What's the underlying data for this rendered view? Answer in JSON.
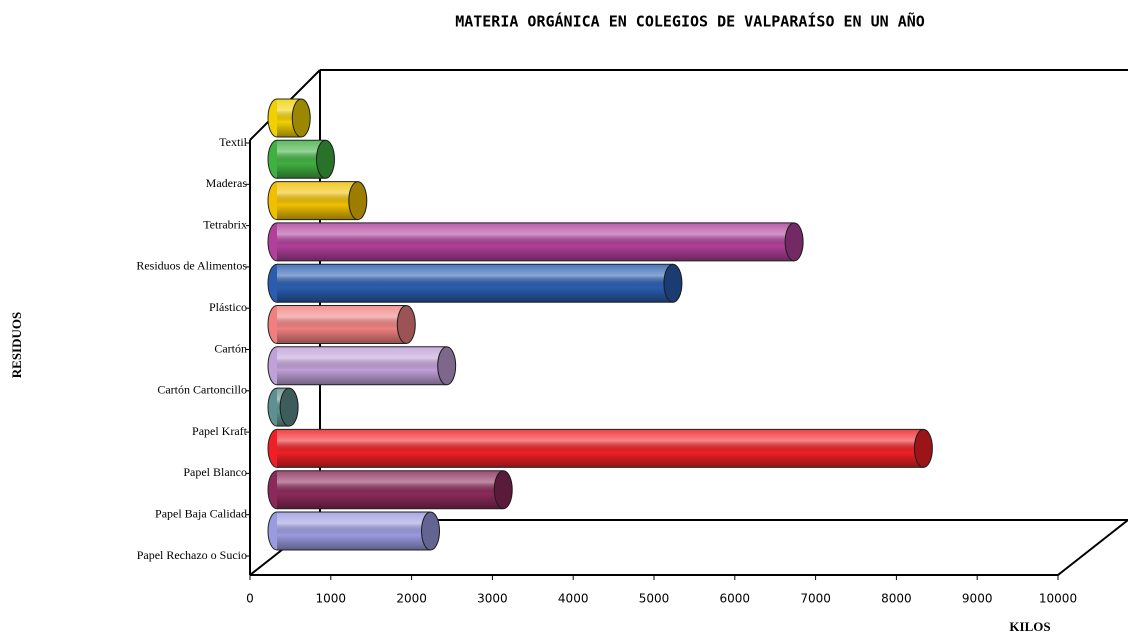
{
  "chart_data": {
    "type": "bar",
    "orientation": "horizontal",
    "title": "MATERIA ORGÁNICA EN COLEGIOS DE VALPARAÍSO EN UN AÑO",
    "xlabel": "KILOS",
    "ylabel": "RESIDUOS",
    "categories": [
      "Papel Rechazo o Sucio",
      "Papel Baja Calidad",
      "Papel Blanco",
      "Papel Kraft",
      "Cartón Cartoncillo",
      "Cartón",
      "Plástico",
      "Residuos de Alimentos",
      "Tetrabrix",
      "Maderas",
      "Textil"
    ],
    "values": [
      1900,
      2800,
      8000,
      150,
      2100,
      1600,
      4900,
      6400,
      1000,
      600,
      300
    ],
    "colors": [
      "#9a9ae0",
      "#8b2a5a",
      "#ee2026",
      "#5f9090",
      "#c0a0d8",
      "#f08080",
      "#2a5db0",
      "#b0409a",
      "#f0c000",
      "#40b040",
      "#f0d000"
    ],
    "xlim": [
      0,
      10000
    ],
    "xticks": [
      0,
      1000,
      2000,
      3000,
      4000,
      5000,
      6000,
      7000,
      8000,
      9000,
      10000
    ]
  }
}
